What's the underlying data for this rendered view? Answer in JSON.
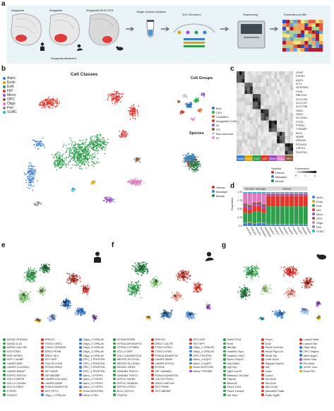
{
  "panel_a": {
    "letter": "a",
    "brain_labels": [
      "Amygdala",
      "Amygdala",
      "Amygdala+BLA+CEA"
    ],
    "dissected_label": "Amygdala dissected",
    "steps": [
      "Single nucleus isolation",
      "10X Chromium",
      "Sequencing",
      "Expression profile"
    ]
  },
  "panel_b": {
    "letter": "b",
    "title": "Cell Classes",
    "classes": [
      {
        "name": "Astro",
        "color": "#3a7fd1"
      },
      {
        "name": "Endo",
        "color": "#e0a400"
      },
      {
        "name": "ExN",
        "color": "#2e9e4a"
      },
      {
        "name": "InN",
        "color": "#e4352b"
      },
      {
        "name": "Micro",
        "color": "#9b4fc9"
      },
      {
        "name": "OPC",
        "color": "#8d5a3a"
      },
      {
        "name": "Oligo",
        "color": "#e27ac0"
      },
      {
        "name": "Peri",
        "color": "#8a8a8a"
      },
      {
        "name": "VLMC",
        "color": "#24b7c8"
      }
    ],
    "groups_title": "Cell Groups",
    "groups": [
      {
        "name": "BLA",
        "color": "#2e6fb7"
      },
      {
        "name": "CEA",
        "color": "#2ea84a"
      },
      {
        "name": "COAMEA",
        "color": "#e07a2a"
      },
      {
        "name": "Amygdala CI-like",
        "color": "#d63a3a"
      },
      {
        "name": "IA",
        "color": "#8f5fc2"
      },
      {
        "name": "ITC",
        "color": "#8b5a3c"
      },
      {
        "name": "Non-neuronal",
        "color": "#c9c9c9"
      },
      {
        "name": "PL",
        "color": "#e592c6"
      }
    ],
    "species_title": "Species",
    "species": [
      {
        "name": "Human",
        "color": "#c0392b"
      },
      {
        "name": "Macaque",
        "color": "#2e86c1"
      },
      {
        "name": "Mouse",
        "color": "#1e8449"
      }
    ]
  },
  "panel_c": {
    "letter": "c",
    "genes": [
      "GFAP",
      "FGFR3",
      "AQP4",
      "FLT1",
      "NOSTRIN",
      "ITIH5",
      "RBFOX3",
      "SLC17A6",
      "SLC17A7",
      "SLC17A6",
      "GAD1",
      "GAD2",
      "SLC32A1",
      "CTSS",
      "PTPRC",
      "TYROBP",
      "MOG",
      "MOBP",
      "OPALIN",
      "PCDH15",
      "CSPG4",
      "PDGFRA"
    ],
    "class_bar": [
      {
        "name": "Astro",
        "color": "#3a7fd1"
      },
      {
        "name": "Endo",
        "color": "#e0a400"
      },
      {
        "name": "ExN",
        "color": "#2e9e4a"
      },
      {
        "name": "InN",
        "color": "#e4352b"
      },
      {
        "name": "Micro",
        "color": "#9b4fc9"
      },
      {
        "name": "Oligo",
        "color": "#e27ac0"
      },
      {
        "name": "OPC",
        "color": "#8d5a3a"
      }
    ],
    "species_legend_title": "Species",
    "species_legend": [
      {
        "name": "Human",
        "color": "#c0392b"
      },
      {
        "name": "Macaque",
        "color": "#2e86c1"
      },
      {
        "name": "Mouse",
        "color": "#1e8449"
      }
    ],
    "expression_title": "Expression",
    "expression_ticks": [
      "0",
      "1",
      "2"
    ]
  },
  "panel_d": {
    "letter": "d",
    "ylabel": "Proportion",
    "species_headers": [
      "Human",
      "Macaque",
      "Mouse"
    ],
    "yticks": [
      "0.0",
      "0.25",
      "0.50",
      "0.75",
      "1.00"
    ],
    "sample_labels": [
      "Human1",
      "Human2",
      "Human3",
      "Macaque1",
      "Macaque2",
      "mouse1",
      "mouse2",
      "mouse3",
      "mouse4",
      "mouse5",
      "mouse6",
      "mouse7",
      "mouse8",
      "mouse9"
    ],
    "legend": [
      {
        "name": "Astro",
        "color": "#3a7fd1"
      },
      {
        "name": "Endo",
        "color": "#e0a400"
      },
      {
        "name": "ExN",
        "color": "#2e9e4a"
      },
      {
        "name": "InN",
        "color": "#e4352b"
      },
      {
        "name": "Micro",
        "color": "#9b4fc9"
      },
      {
        "name": "OPC",
        "color": "#8d5a3a"
      },
      {
        "name": "Oligo",
        "color": "#e27ac0"
      },
      {
        "name": "Peri",
        "color": "#8a8a8a"
      },
      {
        "name": "VLMC",
        "color": "#24b7c8"
      }
    ]
  },
  "panel_e": {
    "letter": "e",
    "species": "Human",
    "legend": [
      {
        "name": "SATB2 ST8SIA2",
        "color": "#2e9e4a"
      },
      {
        "name": "PRKCD",
        "color": "#e4352b"
      },
      {
        "name": "Oligo_2 OPALIN",
        "color": "#3a7fd1"
      },
      {
        "name": "SATB2 IL15",
        "color": "#2e9e4a"
      },
      {
        "name": "TSHZ1 DRD1",
        "color": "#e4352b"
      },
      {
        "name": "Oligo_2 OPALIN",
        "color": "#3a7fd1"
      },
      {
        "name": "SATB2 CALCRL",
        "color": "#2e9e4a"
      },
      {
        "name": "TSHZ1 SEMA3C",
        "color": "#e4352b"
      },
      {
        "name": "Oligo_3 OPALIN",
        "color": "#3a7fd1"
      },
      {
        "name": "HGF ESR1",
        "color": "#2e9e4a"
      },
      {
        "name": "DRD2 PENK",
        "color": "#e4352b"
      },
      {
        "name": "Oligo_2 OPALIN",
        "color": "#3a7fd1"
      },
      {
        "name": "HGF NPSR1",
        "color": "#2e9e4a"
      },
      {
        "name": "DRD2 ISL1",
        "color": "#e4352b"
      },
      {
        "name": "Oligo_4 OPALIN",
        "color": "#3a7fd1"
      },
      {
        "name": "HGF C1orf87",
        "color": "#2e9e4a"
      },
      {
        "name": "SST HGF",
        "color": "#e4352b"
      },
      {
        "name": "OPC_1 PDGFRA",
        "color": "#3a7fd1"
      },
      {
        "name": "LAMP5 ABO",
        "color": "#2e9e4a"
      },
      {
        "name": "CALCR LHX8",
        "color": "#e4352b"
      },
      {
        "name": "OPC_2 PDGFRA",
        "color": "#3a7fd1"
      },
      {
        "name": "LAMP5 COL25A1",
        "color": "#2e9e4a"
      },
      {
        "name": "HTR2A DRD2",
        "color": "#e4352b"
      },
      {
        "name": "OPC_3 PDGFRA",
        "color": "#3a7fd1"
      },
      {
        "name": "LAMP5 BAIAP",
        "color": "#2e9e4a"
      },
      {
        "name": "VIP NDNF",
        "color": "#e4352b"
      },
      {
        "name": "OPC_4 PDGFRA",
        "color": "#3a7fd1"
      },
      {
        "name": "RXFP2 RSPO2",
        "color": "#2e9e4a"
      },
      {
        "name": "VIP ABI3BP",
        "color": "#e4352b"
      },
      {
        "name": "Astro_1 FGFR3",
        "color": "#3a7fd1"
      },
      {
        "name": "VGLL3 MEPE",
        "color": "#2e9e4a"
      },
      {
        "name": "LAMP5 COL14A1",
        "color": "#e4352b"
      },
      {
        "name": "Astro_2 FGFR3",
        "color": "#3a7fd1"
      },
      {
        "name": "VGLL3 CNGB1",
        "color": "#2e9e4a"
      },
      {
        "name": "LAMP5 NDNF",
        "color": "#e4352b"
      },
      {
        "name": "Astro_3 FGFR3",
        "color": "#3a7fd1"
      },
      {
        "name": "SOX11 EBF2",
        "color": "#2e9e4a"
      },
      {
        "name": "PVALB ADAMTS5",
        "color": "#e4352b"
      },
      {
        "name": "Astro_4 FGFR3",
        "color": "#3a7fd1"
      },
      {
        "name": "STRIP2",
        "color": "#2e9e4a"
      },
      {
        "name": "SST EPYC",
        "color": "#e4352b"
      },
      {
        "name": "Endo NOSTRIN",
        "color": "#e0a400"
      },
      {
        "name": "TFAP2C",
        "color": "#2e9e4a"
      },
      {
        "name": "Oligo_1 OPALIN",
        "color": "#3a7fd1"
      },
      {
        "name": "Micro CTSS",
        "color": "#9b4fc9"
      }
    ]
  },
  "panel_f": {
    "letter": "f",
    "species": "Macaque",
    "legend": [
      {
        "name": "HTR2A RORB",
        "color": "#2e9e4a"
      },
      {
        "name": "PRKCD",
        "color": "#e4352b"
      },
      {
        "name": "SST HGF",
        "color": "#e4352b"
      },
      {
        "name": "HTR2A ARHGAP15",
        "color": "#2e9e4a"
      },
      {
        "name": "DRD2 CALCR",
        "color": "#e4352b"
      },
      {
        "name": "SST NPY",
        "color": "#e4352b"
      },
      {
        "name": "HTR2A CYP26B1",
        "color": "#2e9e4a"
      },
      {
        "name": "TSHZ1 DRD1",
        "color": "#e4352b"
      },
      {
        "name": "Oligo_1 OPALIN",
        "color": "#3a7fd1"
      },
      {
        "name": "VGLL3 GRP",
        "color": "#2e9e4a"
      },
      {
        "name": "TSHZ1 ESR1",
        "color": "#e4352b"
      },
      {
        "name": "Oligo_2 OPALIN",
        "color": "#3a7fd1"
      },
      {
        "name": "VGLL3 ADAMTS18",
        "color": "#2e9e4a"
      },
      {
        "name": "PVALB ADAMTS5",
        "color": "#e4352b"
      },
      {
        "name": "OPC PDGFRA",
        "color": "#3a7fd1"
      },
      {
        "name": "MEGF6 SLC47A1",
        "color": "#2e9e4a"
      },
      {
        "name": "LAMP5 NDNF",
        "color": "#e4352b"
      },
      {
        "name": "Astro_1 AQP4",
        "color": "#3a7fd1"
      },
      {
        "name": "MEGF6 SLC30A3",
        "color": "#2e9e4a"
      },
      {
        "name": "LAMP5 EGFL6",
        "color": "#e4352b"
      },
      {
        "name": "Astro_2 AQP4",
        "color": "#3a7fd1"
      },
      {
        "name": "MOXD1 DRD2",
        "color": "#2e9e4a"
      },
      {
        "name": "HTR2A",
        "color": "#e4352b"
      },
      {
        "name": "Endo NOSTRIN",
        "color": "#e0a400"
      },
      {
        "name": "VWA5B1 PDE1C",
        "color": "#2e9e4a"
      },
      {
        "name": "VIP VWA5B1",
        "color": "#e4352b"
      },
      {
        "name": "Micro TYROBP",
        "color": "#9b4fc9"
      },
      {
        "name": "VWA5B1 TEKT2",
        "color": "#2e9e4a"
      },
      {
        "name": "PVALB ADAMTS5",
        "color": "#e4352b"
      },
      {
        "name": "",
        "color": ""
      },
      {
        "name": "DPP10 SATB2",
        "color": "#2e9e4a"
      },
      {
        "name": "CALCR PNOC",
        "color": "#e4352b"
      },
      {
        "name": "",
        "color": ""
      },
      {
        "name": "DPP10 SEMA5C",
        "color": "#2e9e4a"
      },
      {
        "name": "DRD2 HAPLN1",
        "color": "#e4352b"
      },
      {
        "name": "",
        "color": ""
      },
      {
        "name": "DPP10 HTR2C",
        "color": "#2e9e4a"
      },
      {
        "name": "SST PENK",
        "color": "#e4352b"
      },
      {
        "name": "",
        "color": ""
      },
      {
        "name": "BCL2 SOX11",
        "color": "#2e9e4a"
      },
      {
        "name": "SST ABI3BP",
        "color": "#e4352b"
      },
      {
        "name": "",
        "color": ""
      },
      {
        "name": "TFAP2C",
        "color": "#2e9e4a"
      },
      {
        "name": "",
        "color": ""
      },
      {
        "name": "",
        "color": ""
      }
    ]
  },
  "panel_g": {
    "letter": "g",
    "species": "Mouse",
    "legend": [
      {
        "name": "Satb2 Eln3",
        "color": "#2e9e4a"
      },
      {
        "name": "Prkcd",
        "color": "#e4352b"
      },
      {
        "name": "Lamp5 Ndnf",
        "color": "#e4352b"
      },
      {
        "name": "Rorb",
        "color": "#2e9e4a"
      },
      {
        "name": "Drd2",
        "color": "#e4352b"
      },
      {
        "name": "Lamp5 Nt2",
        "color": "#e4352b"
      },
      {
        "name": "Akr3bp",
        "color": "#2e9e4a"
      },
      {
        "name": "Htr2a Col14a1",
        "color": "#e4352b"
      },
      {
        "name": "Oligo Mog",
        "color": "#3a7fd1"
      },
      {
        "name": "Vwa5b1 Ryr1",
        "color": "#2e9e4a"
      },
      {
        "name": "Htr2a Ppp1r1c",
        "color": "#e4352b"
      },
      {
        "name": "OPC Pdgfra",
        "color": "#3a7fd1"
      },
      {
        "name": "Vwa5b1 Sim1",
        "color": "#2e9e4a"
      },
      {
        "name": "Htr2a Vip",
        "color": "#e4352b"
      },
      {
        "name": "Astro Aqp4",
        "color": "#3a7fd1"
      },
      {
        "name": "Npsr1 Rspo2",
        "color": "#2e9e4a"
      },
      {
        "name": "Lhx6 Gpc5",
        "color": "#e4352b"
      },
      {
        "name": "Micro Ctss",
        "color": "#9b4fc9"
      },
      {
        "name": "Hgf Satb2",
        "color": "#2e9e4a"
      },
      {
        "name": "Pappa2 Nxph2",
        "color": "#e4352b"
      },
      {
        "name": "Peri Acta",
        "color": "#8a8a8a"
      },
      {
        "name": "Hgf Grp",
        "color": "#2e9e4a"
      },
      {
        "name": "Isl1",
        "color": "#e4352b"
      },
      {
        "name": "VLMC Lum",
        "color": "#24b7c8"
      },
      {
        "name": "Vgll3 Car12",
        "color": "#2e9e4a"
      },
      {
        "name": "Calcr",
        "color": "#e4352b"
      },
      {
        "name": "Endo Flt1",
        "color": "#e0a400"
      },
      {
        "name": "Mamdc2 Slc24a2",
        "color": "#2e9e4a"
      },
      {
        "name": "Cosn1",
        "color": "#e4352b"
      },
      {
        "name": "",
        "color": ""
      },
      {
        "name": "Tfap2b",
        "color": "#2e9e4a"
      },
      {
        "name": "Sst Drd1",
        "color": "#e4352b"
      },
      {
        "name": "",
        "color": ""
      },
      {
        "name": "Bhlhe22",
        "color": "#2e9e4a"
      },
      {
        "name": "Sst Drd1",
        "color": "#e4352b"
      },
      {
        "name": "",
        "color": ""
      },
      {
        "name": "Tshz1 Drd1",
        "color": "#2e9e4a"
      },
      {
        "name": "Sst Chodl",
        "color": "#e4352b"
      },
      {
        "name": "",
        "color": ""
      },
      {
        "name": "Tshz1 Lamp5",
        "color": "#2e9e4a"
      },
      {
        "name": "Adamts5 Pvalb",
        "color": "#e4352b"
      },
      {
        "name": "",
        "color": ""
      },
      {
        "name": "Sst Tac2",
        "color": "#2e9e4a"
      },
      {
        "name": "Pvalb Egfl6",
        "color": "#e4352b"
      },
      {
        "name": "",
        "color": ""
      }
    ]
  }
}
